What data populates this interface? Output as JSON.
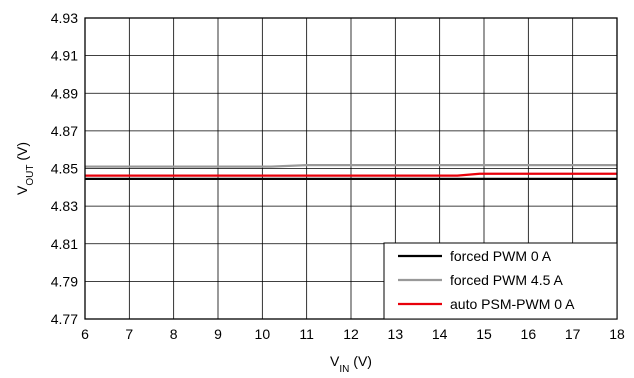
{
  "chart_data": {
    "type": "line",
    "xlabel": {
      "main": "V",
      "sub": "IN",
      "unit": " (V)"
    },
    "ylabel": {
      "main": "V",
      "sub": "OUT",
      "unit": " (V)"
    },
    "xlim": [
      6,
      18
    ],
    "ylim": [
      4.77,
      4.93
    ],
    "x_ticks": [
      6,
      7,
      8,
      9,
      10,
      11,
      12,
      13,
      14,
      15,
      16,
      17,
      18
    ],
    "y_ticks": [
      "4.77",
      "4.79",
      "4.81",
      "4.83",
      "4.85",
      "4.87",
      "4.89",
      "4.91",
      "4.93"
    ],
    "grid": true,
    "legend_position": "bottom-right",
    "series": [
      {
        "name": "forced PWM 0 A",
        "color": "#000000",
        "points": [
          [
            6,
            4.8445
          ],
          [
            13.5,
            4.8445
          ],
          [
            14,
            4.8445
          ],
          [
            18,
            4.8445
          ]
        ]
      },
      {
        "name": "forced PWM 4.5 A",
        "color": "#999999",
        "points": [
          [
            6,
            4.851
          ],
          [
            10.2,
            4.851
          ],
          [
            11,
            4.8518
          ],
          [
            18,
            4.8518
          ]
        ]
      },
      {
        "name": "auto PSM-PWM 0 A",
        "color": "#e8000b",
        "points": [
          [
            6,
            4.8462
          ],
          [
            13.9,
            4.8462
          ],
          [
            14.4,
            4.8462
          ],
          [
            14.9,
            4.8472
          ],
          [
            18,
            4.8472
          ]
        ]
      }
    ]
  }
}
